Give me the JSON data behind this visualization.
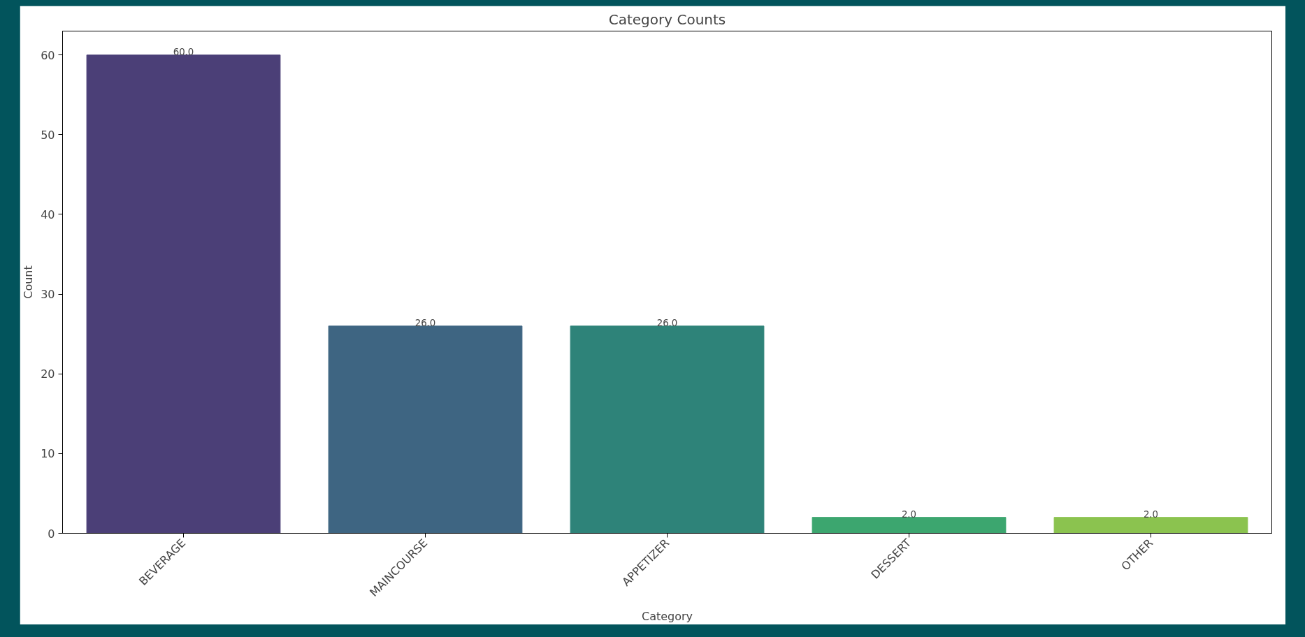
{
  "chart_data": {
    "type": "bar",
    "title": "Category Counts",
    "xlabel": "Category",
    "ylabel": "Count",
    "categories": [
      "BEVERAGE",
      "MAINCOURSE",
      "APPETIZER",
      "DESSERT",
      "OTHER"
    ],
    "values": [
      60,
      26,
      26,
      2,
      2
    ],
    "colors": [
      "#4b3f77",
      "#3e6582",
      "#2e8379",
      "#3ca66f",
      "#8bc34f"
    ],
    "value_labels": [
      "60.0",
      "26.0",
      "26.0",
      "2.0",
      "2.0"
    ],
    "ylim": [
      0,
      63
    ],
    "yticks": [
      0,
      10,
      20,
      30,
      40,
      50,
      60
    ],
    "grid": false
  }
}
